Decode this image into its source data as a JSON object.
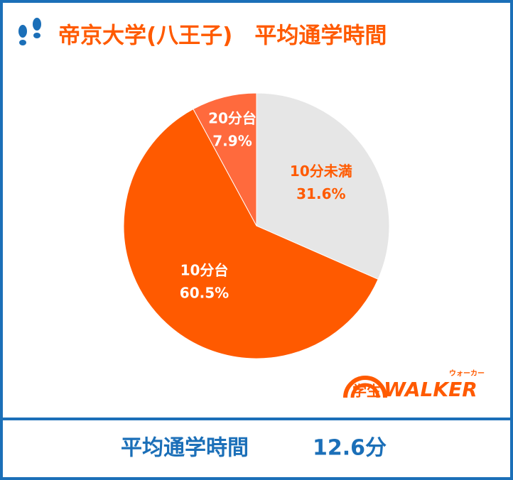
{
  "chart_data": {
    "type": "pie",
    "title": "帝京大学(八王子)　平均通学時間",
    "categories": [
      "10分未満",
      "10分台",
      "20分台"
    ],
    "values": [
      31.6,
      60.5,
      7.9
    ],
    "value_labels": [
      "31.6%",
      "60.5%",
      "7.9%"
    ],
    "colors": [
      "#e6e6e6",
      "#ff5a00",
      "#ff6a3d"
    ],
    "label_colors": [
      "#ff5a00",
      "#ffffff",
      "#ffffff"
    ]
  },
  "logo": {
    "kanji": "学生",
    "latin": "WALKER",
    "kana": "ウォーカー"
  },
  "footer": {
    "label": "平均通学時間",
    "value": "12.6分"
  }
}
